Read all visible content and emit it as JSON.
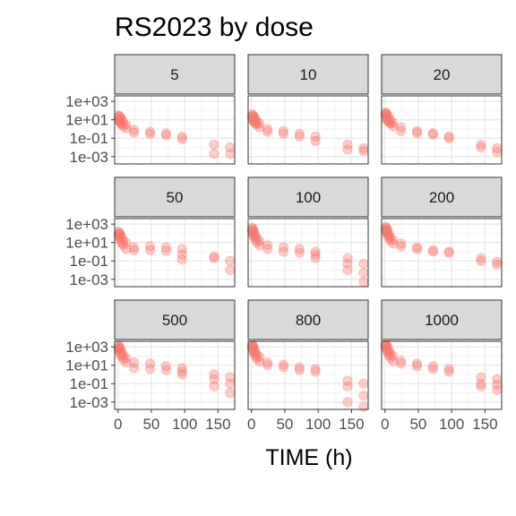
{
  "chart_data": {
    "type": "scatter",
    "title": "RS2023 by dose",
    "xlabel": "TIME (h)",
    "ylabel": "",
    "x_log": false,
    "y_log": true,
    "xlim": [
      -5,
      175
    ],
    "ylim": [
      -3.8,
      3.6
    ],
    "x_ticks": [
      0,
      50,
      100,
      150
    ],
    "x_tick_labels": [
      "0",
      "50",
      "100",
      "150"
    ],
    "y_ticks": [
      1000,
      10,
      0.1,
      0.001
    ],
    "y_tick_labels": [
      "1e+03",
      "1e+01",
      "1e-01",
      "1e-03"
    ],
    "grid": true,
    "point_color": "#F8766D",
    "point_alpha": 0.35,
    "panels": [
      {
        "label": "5",
        "points": [
          [
            0.5,
            12
          ],
          [
            1,
            30
          ],
          [
            1,
            10
          ],
          [
            2,
            25
          ],
          [
            2,
            8
          ],
          [
            3,
            20
          ],
          [
            3,
            6
          ],
          [
            4,
            15
          ],
          [
            4,
            4
          ],
          [
            6,
            10
          ],
          [
            6,
            3
          ],
          [
            8,
            5
          ],
          [
            8,
            2
          ],
          [
            12,
            3
          ],
          [
            12,
            1.2
          ],
          [
            24,
            0.8
          ],
          [
            24,
            0.4
          ],
          [
            48,
            0.5
          ],
          [
            48,
            0.3
          ],
          [
            72,
            0.35
          ],
          [
            72,
            0.2
          ],
          [
            96,
            0.15
          ],
          [
            96,
            0.08
          ],
          [
            144,
            0.02
          ],
          [
            144,
            0.002
          ],
          [
            168,
            0.01
          ],
          [
            168,
            0.002
          ]
        ]
      },
      {
        "label": "10",
        "points": [
          [
            0.5,
            20
          ],
          [
            1,
            40
          ],
          [
            1,
            15
          ],
          [
            2,
            30
          ],
          [
            2,
            10
          ],
          [
            3,
            25
          ],
          [
            3,
            8
          ],
          [
            4,
            18
          ],
          [
            4,
            6
          ],
          [
            6,
            12
          ],
          [
            6,
            4
          ],
          [
            8,
            6
          ],
          [
            8,
            3
          ],
          [
            12,
            4
          ],
          [
            12,
            1.5
          ],
          [
            24,
            1
          ],
          [
            24,
            0.5
          ],
          [
            48,
            0.6
          ],
          [
            48,
            0.3
          ],
          [
            72,
            0.3
          ],
          [
            72,
            0.15
          ],
          [
            96,
            0.15
          ],
          [
            96,
            0.05
          ],
          [
            144,
            0.02
          ],
          [
            144,
            0.006
          ],
          [
            168,
            0.008
          ],
          [
            168,
            0.004
          ]
        ]
      },
      {
        "label": "20",
        "points": [
          [
            0.5,
            40
          ],
          [
            1,
            60
          ],
          [
            1,
            20
          ],
          [
            2,
            50
          ],
          [
            2,
            15
          ],
          [
            3,
            35
          ],
          [
            3,
            10
          ],
          [
            4,
            25
          ],
          [
            4,
            8
          ],
          [
            6,
            15
          ],
          [
            6,
            5
          ],
          [
            8,
            8
          ],
          [
            8,
            4
          ],
          [
            12,
            5
          ],
          [
            12,
            2
          ],
          [
            24,
            1.5
          ],
          [
            24,
            0.6
          ],
          [
            48,
            0.6
          ],
          [
            48,
            0.35
          ],
          [
            72,
            0.35
          ],
          [
            72,
            0.25
          ],
          [
            96,
            0.15
          ],
          [
            96,
            0.1
          ],
          [
            144,
            0.02
          ],
          [
            144,
            0.01
          ],
          [
            168,
            0.008
          ],
          [
            168,
            0.003
          ]
        ]
      },
      {
        "label": "50",
        "points": [
          [
            0.5,
            80
          ],
          [
            1,
            150
          ],
          [
            1,
            60
          ],
          [
            2,
            120
          ],
          [
            2,
            40
          ],
          [
            3,
            80
          ],
          [
            3,
            25
          ],
          [
            4,
            60
          ],
          [
            4,
            15
          ],
          [
            6,
            30
          ],
          [
            6,
            8
          ],
          [
            8,
            15
          ],
          [
            8,
            5
          ],
          [
            12,
            10
          ],
          [
            12,
            2
          ],
          [
            24,
            3
          ],
          [
            24,
            1.5
          ],
          [
            48,
            4
          ],
          [
            48,
            1.5
          ],
          [
            72,
            3
          ],
          [
            72,
            1.2
          ],
          [
            96,
            2
          ],
          [
            96,
            0.5
          ],
          [
            96,
            0.15
          ],
          [
            144,
            0.3
          ],
          [
            144,
            0.2
          ],
          [
            168,
            0.1
          ],
          [
            168,
            0.01
          ]
        ]
      },
      {
        "label": "100",
        "points": [
          [
            0.5,
            200
          ],
          [
            1,
            400
          ],
          [
            1,
            150
          ],
          [
            2,
            300
          ],
          [
            2,
            100
          ],
          [
            3,
            200
          ],
          [
            3,
            60
          ],
          [
            4,
            120
          ],
          [
            4,
            40
          ],
          [
            6,
            60
          ],
          [
            6,
            20
          ],
          [
            8,
            30
          ],
          [
            8,
            10
          ],
          [
            12,
            15
          ],
          [
            12,
            5
          ],
          [
            24,
            5
          ],
          [
            24,
            2
          ],
          [
            48,
            3
          ],
          [
            48,
            1
          ],
          [
            72,
            2
          ],
          [
            72,
            0.8
          ],
          [
            96,
            1
          ],
          [
            96,
            0.5
          ],
          [
            96,
            0.2
          ],
          [
            144,
            0.2
          ],
          [
            144,
            0.05
          ],
          [
            144,
            0.01
          ],
          [
            168,
            0.05
          ],
          [
            168,
            0.005
          ],
          [
            168,
            0.0005
          ]
        ]
      },
      {
        "label": "200",
        "points": [
          [
            0.5,
            300
          ],
          [
            1,
            500
          ],
          [
            1,
            200
          ],
          [
            2,
            400
          ],
          [
            2,
            150
          ],
          [
            3,
            250
          ],
          [
            3,
            100
          ],
          [
            4,
            180
          ],
          [
            4,
            60
          ],
          [
            6,
            80
          ],
          [
            6,
            30
          ],
          [
            8,
            40
          ],
          [
            8,
            15
          ],
          [
            12,
            20
          ],
          [
            12,
            8
          ],
          [
            24,
            8
          ],
          [
            24,
            4
          ],
          [
            48,
            3
          ],
          [
            48,
            2
          ],
          [
            72,
            1.5
          ],
          [
            72,
            1
          ],
          [
            96,
            1
          ],
          [
            96,
            0.8
          ],
          [
            144,
            0.2
          ],
          [
            144,
            0.1
          ],
          [
            168,
            0.08
          ],
          [
            168,
            0.04
          ]
        ]
      },
      {
        "label": "500",
        "points": [
          [
            0.5,
            800
          ],
          [
            1,
            1500
          ],
          [
            1,
            600
          ],
          [
            2,
            1000
          ],
          [
            2,
            400
          ],
          [
            3,
            700
          ],
          [
            3,
            250
          ],
          [
            4,
            500
          ],
          [
            4,
            150
          ],
          [
            6,
            250
          ],
          [
            6,
            80
          ],
          [
            8,
            120
          ],
          [
            8,
            40
          ],
          [
            12,
            60
          ],
          [
            12,
            20
          ],
          [
            24,
            20
          ],
          [
            24,
            5
          ],
          [
            48,
            15
          ],
          [
            48,
            4
          ],
          [
            72,
            8
          ],
          [
            72,
            3
          ],
          [
            96,
            5
          ],
          [
            96,
            2
          ],
          [
            96,
            1
          ],
          [
            144,
            1
          ],
          [
            144,
            0.3
          ],
          [
            144,
            0.05
          ],
          [
            168,
            0.5
          ],
          [
            168,
            0.1
          ],
          [
            168,
            0.01
          ]
        ]
      },
      {
        "label": "800",
        "points": [
          [
            0.5,
            1000
          ],
          [
            1,
            2000
          ],
          [
            1,
            800
          ],
          [
            2,
            1500
          ],
          [
            2,
            500
          ],
          [
            3,
            1000
          ],
          [
            3,
            300
          ],
          [
            4,
            700
          ],
          [
            4,
            200
          ],
          [
            6,
            300
          ],
          [
            6,
            100
          ],
          [
            8,
            150
          ],
          [
            8,
            50
          ],
          [
            12,
            80
          ],
          [
            12,
            25
          ],
          [
            24,
            20
          ],
          [
            24,
            10
          ],
          [
            48,
            12
          ],
          [
            48,
            6
          ],
          [
            72,
            6
          ],
          [
            72,
            3
          ],
          [
            96,
            4
          ],
          [
            96,
            2
          ],
          [
            144,
            0.2
          ],
          [
            144,
            0.05
          ],
          [
            144,
            0.001
          ],
          [
            168,
            0.1
          ],
          [
            168,
            0.005
          ],
          [
            168,
            0.0003
          ]
        ]
      },
      {
        "label": "1000",
        "points": [
          [
            0.5,
            1200
          ],
          [
            1,
            2500
          ],
          [
            1,
            1000
          ],
          [
            2,
            1800
          ],
          [
            2,
            600
          ],
          [
            3,
            1200
          ],
          [
            3,
            400
          ],
          [
            4,
            800
          ],
          [
            4,
            250
          ],
          [
            6,
            400
          ],
          [
            6,
            120
          ],
          [
            8,
            200
          ],
          [
            8,
            60
          ],
          [
            12,
            100
          ],
          [
            12,
            30
          ],
          [
            24,
            30
          ],
          [
            24,
            15
          ],
          [
            48,
            15
          ],
          [
            48,
            8
          ],
          [
            72,
            8
          ],
          [
            72,
            4
          ],
          [
            96,
            4
          ],
          [
            96,
            2
          ],
          [
            144,
            0.5
          ],
          [
            144,
            0.1
          ],
          [
            144,
            0.05
          ],
          [
            168,
            0.3
          ],
          [
            168,
            0.08
          ],
          [
            168,
            0.02
          ]
        ]
      }
    ]
  }
}
